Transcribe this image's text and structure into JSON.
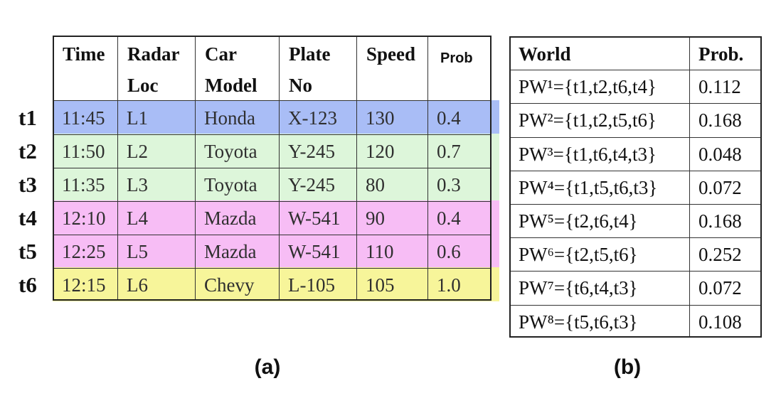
{
  "table_a": {
    "headers": [
      "Time\nRadar",
      "Radar\nLoc",
      "Car\nModel",
      "Plate\nNo",
      "Speed",
      "Prob"
    ],
    "header_labels": [
      "Time",
      "Radar\nLoc",
      "Car\nModel",
      "Plate\nNo",
      "Speed",
      "Prob"
    ],
    "row_ids": [
      "t1",
      "t2",
      "t3",
      "t4",
      "t5",
      "t6"
    ],
    "rows": [
      [
        "11:45",
        "L1",
        "Honda",
        "X-123",
        "130",
        "0.4"
      ],
      [
        "11:50",
        "L2",
        "Toyota",
        "Y-245",
        "120",
        "0.7"
      ],
      [
        "11:35",
        "L3",
        "Toyota",
        "Y-245",
        "80",
        "0.3"
      ],
      [
        "12:10",
        "L4",
        "Mazda",
        "W-541",
        "90",
        "0.4"
      ],
      [
        "12:25",
        "L5",
        "Mazda",
        "W-541",
        "110",
        "0.6"
      ],
      [
        "12:15",
        "L6",
        "Chevy",
        "L-105",
        "105",
        "1.0"
      ]
    ],
    "band_colors": [
      "#a9bdf6",
      "#ddf6da",
      "#ddf6da",
      "#f7bdf5",
      "#f7bdf5",
      "#f7f59a"
    ]
  },
  "table_b": {
    "headers": [
      "World",
      "Prob."
    ],
    "rows": [
      {
        "world": "PW¹={t1,t2,t6,t4}",
        "prob": "0.112"
      },
      {
        "world": "PW²={t1,t2,t5,t6}",
        "prob": "0.168"
      },
      {
        "world": "PW³={t1,t6,t4,t3}",
        "prob": "0.048"
      },
      {
        "world": "PW⁴={t1,t5,t6,t3}",
        "prob": "0.072"
      },
      {
        "world": "PW⁵={t2,t6,t4}",
        "prob": "0.168"
      },
      {
        "world": "PW⁶={t2,t5,t6}",
        "prob": "0.252"
      },
      {
        "world": "PW⁷={t6,t4,t3}",
        "prob": "0.072"
      },
      {
        "world": "PW⁸={t5,t6,t3}",
        "prob": "0.108"
      }
    ]
  },
  "captions": {
    "a": "(a)",
    "b": "(b)"
  }
}
